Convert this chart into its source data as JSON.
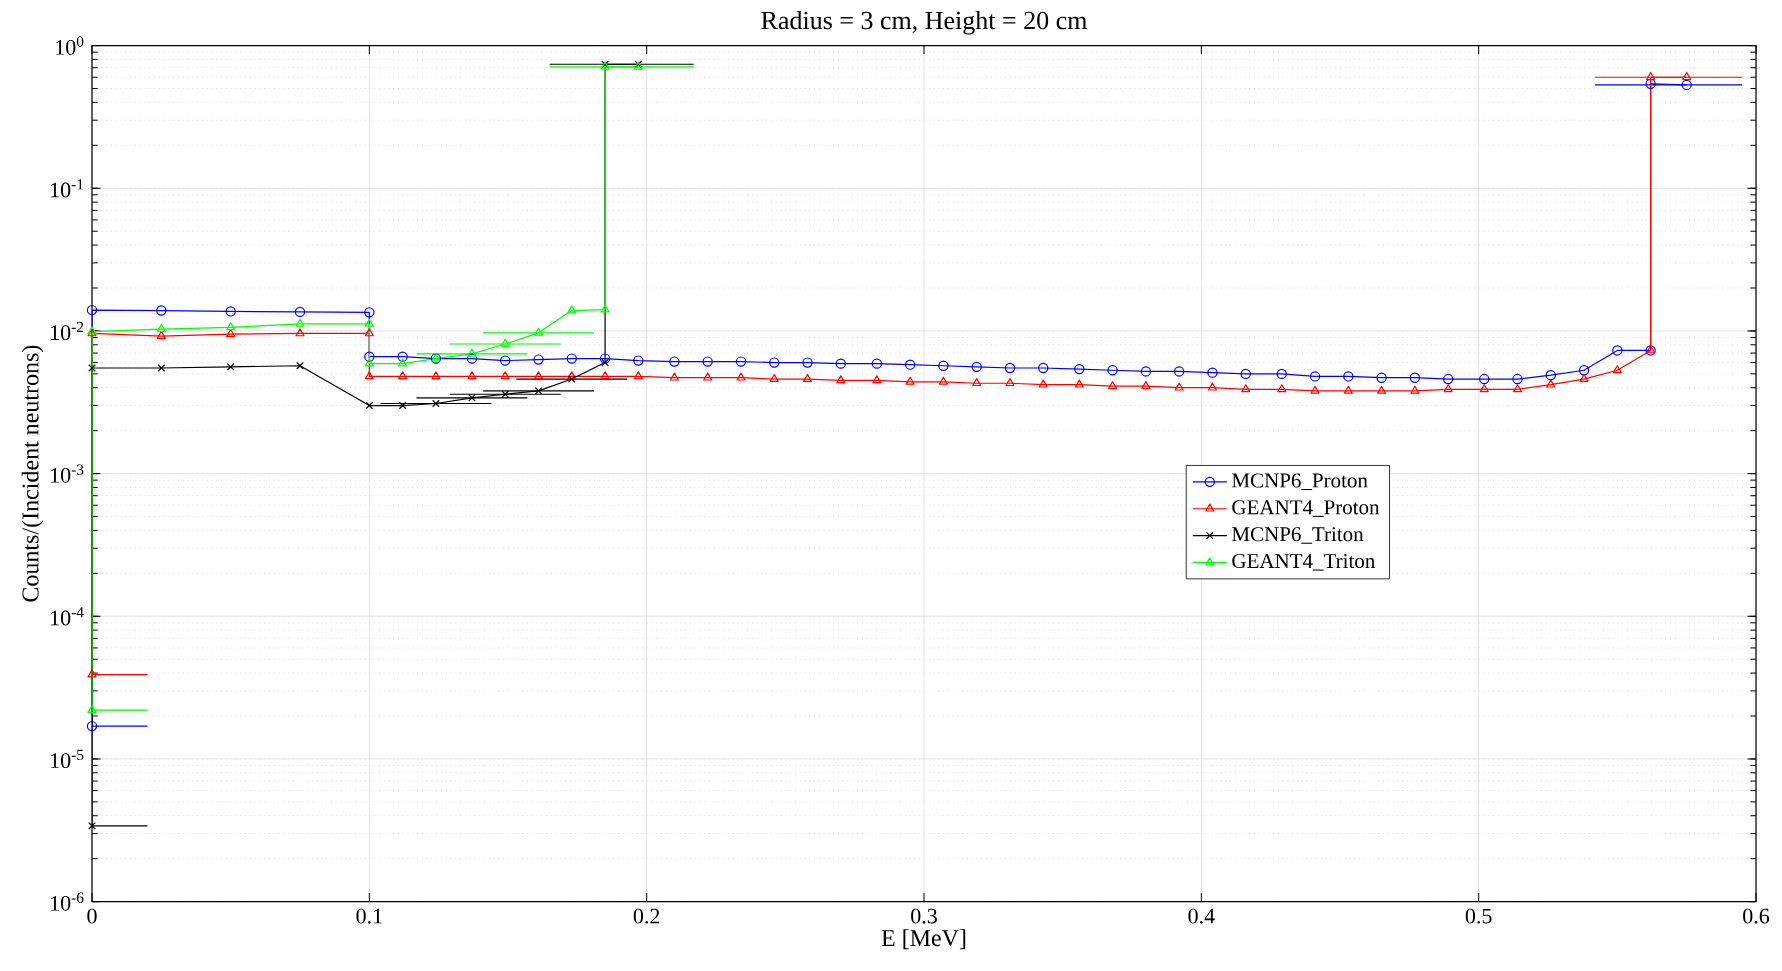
{
  "chart_data": {
    "type": "line",
    "title": "Radius = 3 cm, Height = 20 cm",
    "xlabel": "E [MeV]",
    "ylabel": "Counts/(Incident neutrons)",
    "log": "y",
    "grid": true,
    "legend": "right",
    "line_style": "solid",
    "xlim": [
      0,
      0.6
    ],
    "xticks": [
      0,
      0.1,
      0.2,
      0.3,
      0.4,
      0.5,
      0.6
    ],
    "ylim": [
      1e-06,
      1
    ],
    "yticks": [
      {
        "value": 1e-06,
        "label": "10$^{-6}$"
      },
      {
        "value": 1e-05,
        "label": "10$^{-5}$"
      },
      {
        "value": 0.0001,
        "label": "10$^{-4}$"
      },
      {
        "value": 0.001,
        "label": "10$^{-3}$"
      },
      {
        "value": 0.01,
        "label": "10$^{-2}$"
      },
      {
        "value": 0.1,
        "label": "10$^{-1}$"
      },
      {
        "value": 1,
        "label": "10$^{0}$"
      }
    ],
    "series": [
      {
        "name": "MCNP6_Proton",
        "color": "#0000ff",
        "marker": "circle",
        "x": [
          0,
          0,
          0.025,
          0.05,
          0.075,
          0.1,
          0.1,
          0.112,
          0.124,
          0.137,
          0.149,
          0.161,
          0.173,
          0.185,
          0.197,
          0.21,
          0.222,
          0.234,
          0.246,
          0.258,
          0.27,
          0.283,
          0.295,
          0.307,
          0.319,
          0.331,
          0.343,
          0.356,
          0.368,
          0.38,
          0.392,
          0.404,
          0.416,
          0.429,
          0.441,
          0.453,
          0.465,
          0.477,
          0.489,
          0.502,
          0.514,
          0.526,
          0.538,
          0.55,
          0.562,
          0.562,
          0.575
        ],
        "values": [
          1.7e-05,
          0.014,
          0.0139,
          0.0137,
          0.0136,
          0.0135,
          0.0066,
          0.0066,
          0.0064,
          0.0064,
          0.0062,
          0.0063,
          0.0064,
          0.0064,
          0.0062,
          0.0061,
          0.0061,
          0.0061,
          0.006,
          0.006,
          0.0059,
          0.0059,
          0.0058,
          0.0057,
          0.0056,
          0.0055,
          0.0055,
          0.0054,
          0.0053,
          0.0052,
          0.0052,
          0.0051,
          0.005,
          0.005,
          0.0048,
          0.0048,
          0.0047,
          0.0047,
          0.0046,
          0.0046,
          0.0046,
          0.0049,
          0.0053,
          0.0073,
          0.0073,
          0.54,
          0.53
        ],
        "xerrors": [
          [
            0,
            0.02
          ],
          null,
          null,
          null,
          null,
          null,
          null,
          null,
          null,
          null,
          null,
          null,
          null,
          null,
          null,
          null,
          null,
          null,
          null,
          null,
          null,
          null,
          null,
          null,
          null,
          null,
          null,
          null,
          null,
          null,
          null,
          null,
          null,
          null,
          null,
          null,
          null,
          null,
          null,
          null,
          null,
          null,
          null,
          null,
          null,
          null,
          [
            0.542,
            0.595
          ]
        ]
      },
      {
        "name": "GEANT4_Proton",
        "color": "#ff0000",
        "marker": "triangle",
        "x": [
          0,
          0,
          0.025,
          0.05,
          0.075,
          0.1,
          0.1,
          0.112,
          0.124,
          0.137,
          0.149,
          0.161,
          0.173,
          0.185,
          0.197,
          0.21,
          0.222,
          0.234,
          0.246,
          0.258,
          0.27,
          0.283,
          0.295,
          0.307,
          0.319,
          0.331,
          0.343,
          0.356,
          0.368,
          0.38,
          0.392,
          0.404,
          0.416,
          0.429,
          0.441,
          0.453,
          0.465,
          0.477,
          0.489,
          0.502,
          0.514,
          0.526,
          0.538,
          0.55,
          0.562,
          0.562,
          0.575
        ],
        "values": [
          3.9e-05,
          0.0096,
          0.0092,
          0.0095,
          0.0096,
          0.0096,
          0.0048,
          0.0048,
          0.0048,
          0.0048,
          0.0048,
          0.0048,
          0.0048,
          0.0048,
          0.0048,
          0.0047,
          0.0047,
          0.0047,
          0.0046,
          0.0046,
          0.0045,
          0.0045,
          0.0044,
          0.0044,
          0.0043,
          0.0043,
          0.0042,
          0.0042,
          0.0041,
          0.0041,
          0.004,
          0.004,
          0.0039,
          0.0039,
          0.0038,
          0.0038,
          0.0038,
          0.0038,
          0.0039,
          0.0039,
          0.0039,
          0.0042,
          0.0046,
          0.0053,
          0.0073,
          0.6,
          0.6
        ],
        "xerrors": [
          [
            0,
            0.02
          ],
          null,
          null,
          null,
          null,
          null,
          null,
          null,
          null,
          null,
          null,
          null,
          null,
          null,
          null,
          null,
          null,
          null,
          null,
          null,
          null,
          null,
          null,
          null,
          null,
          null,
          null,
          null,
          null,
          null,
          null,
          null,
          null,
          null,
          null,
          null,
          null,
          null,
          null,
          null,
          null,
          null,
          null,
          null,
          null,
          null,
          [
            0.542,
            0.595
          ]
        ]
      },
      {
        "name": "MCNP6_Triton",
        "color": "#000000",
        "marker": "cross",
        "x": [
          0,
          0,
          0.025,
          0.05,
          0.075,
          0.1,
          0.112,
          0.124,
          0.137,
          0.149,
          0.161,
          0.173,
          0.185,
          0.185,
          0.197
        ],
        "values": [
          3.4e-06,
          0.0055,
          0.0055,
          0.0056,
          0.0057,
          0.003,
          0.003,
          0.0031,
          0.0034,
          0.0036,
          0.0038,
          0.0046,
          0.006,
          0.74,
          0.74
        ],
        "xerrors": [
          [
            0,
            0.02
          ],
          null,
          null,
          null,
          null,
          null,
          null,
          0.02,
          0.02,
          0.02,
          0.02,
          0.02,
          null,
          null,
          [
            0.165,
            0.217
          ]
        ]
      },
      {
        "name": "GEANT4_Triton",
        "color": "#00ff00",
        "marker": "triangle",
        "x": [
          0,
          0,
          0.025,
          0.05,
          0.075,
          0.1,
          0.1,
          0.112,
          0.124,
          0.137,
          0.149,
          0.161,
          0.173,
          0.185,
          0.185,
          0.197
        ],
        "values": [
          2.2e-05,
          0.0099,
          0.0103,
          0.0106,
          0.0112,
          0.0112,
          0.0059,
          0.0059,
          0.0064,
          0.0069,
          0.0081,
          0.0097,
          0.0139,
          0.0141,
          0.71,
          0.71
        ],
        "xerrors": [
          [
            0,
            0.02
          ],
          null,
          null,
          null,
          null,
          null,
          null,
          null,
          null,
          0.02,
          0.02,
          0.02,
          null,
          null,
          null,
          [
            0.165,
            0.217
          ]
        ]
      }
    ]
  }
}
